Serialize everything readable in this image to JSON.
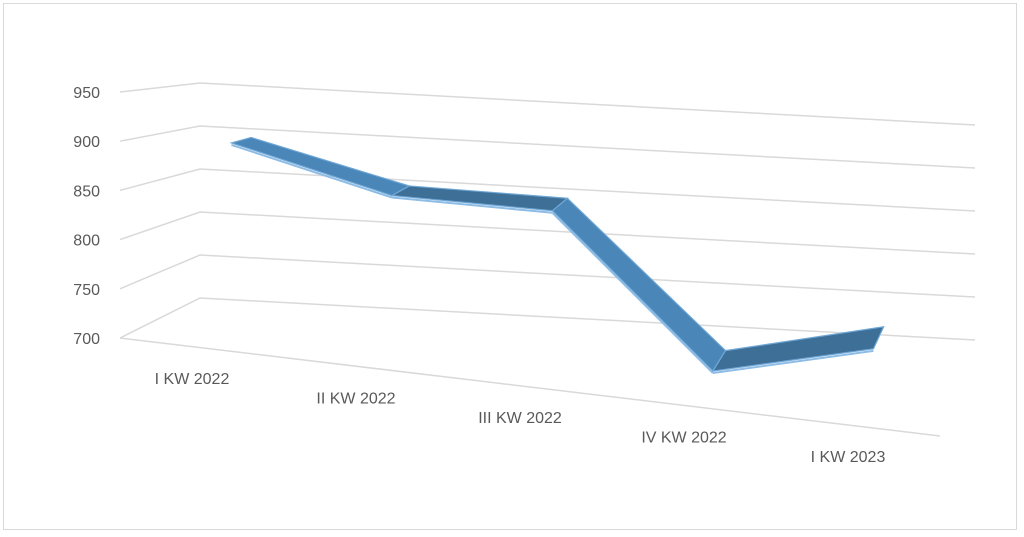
{
  "chart_data": {
    "type": "line",
    "style": "3d-ribbon",
    "categories": [
      "I KW 2022",
      "II KW 2022",
      "III KW 2022",
      "IV KW 2022",
      "I KW 2023"
    ],
    "series": [
      {
        "values": [
          900,
          860,
          860,
          705,
          745
        ],
        "color": "#4a86b8"
      }
    ],
    "y_ticks": [
      700,
      750,
      800,
      850,
      900,
      950
    ],
    "ylim": [
      700,
      950
    ],
    "grid": true,
    "legend": "none"
  }
}
